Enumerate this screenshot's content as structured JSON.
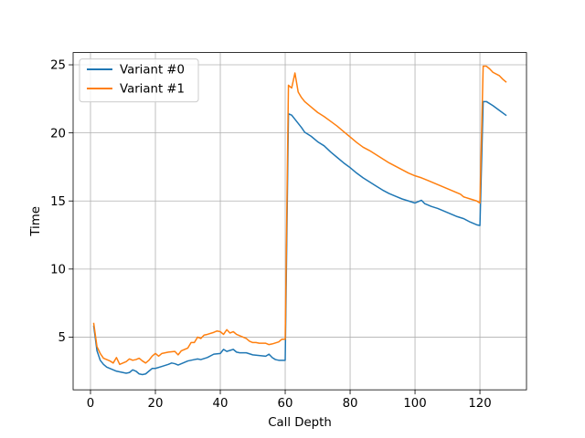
{
  "chart_data": {
    "type": "line",
    "title": "",
    "xlabel": "Call Depth",
    "ylabel": "Time",
    "xlim": [
      -5.35,
      134.35
    ],
    "ylim": [
      1.13,
      25.9
    ],
    "xticks": [
      0,
      20,
      40,
      60,
      80,
      100,
      120
    ],
    "yticks": [
      5,
      10,
      15,
      20,
      25
    ],
    "grid": true,
    "legend_position": "upper-left",
    "series": [
      {
        "name": "Variant #0",
        "color": "#1f77b4",
        "points": [
          [
            1,
            5.8
          ],
          [
            2,
            4.0
          ],
          [
            3,
            3.3
          ],
          [
            4,
            3.0
          ],
          [
            5,
            2.8
          ],
          [
            6,
            2.7
          ],
          [
            7,
            2.6
          ],
          [
            8,
            2.5
          ],
          [
            9,
            2.45
          ],
          [
            10,
            2.4
          ],
          [
            11,
            2.35
          ],
          [
            12,
            2.4
          ],
          [
            13,
            2.6
          ],
          [
            14,
            2.5
          ],
          [
            15,
            2.3
          ],
          [
            16,
            2.25
          ],
          [
            17,
            2.3
          ],
          [
            18,
            2.5
          ],
          [
            19,
            2.7
          ],
          [
            20,
            2.7
          ],
          [
            22,
            2.85
          ],
          [
            24,
            3.0
          ],
          [
            25,
            3.1
          ],
          [
            26,
            3.05
          ],
          [
            27,
            2.95
          ],
          [
            28,
            3.05
          ],
          [
            30,
            3.25
          ],
          [
            32,
            3.35
          ],
          [
            33,
            3.4
          ],
          [
            34,
            3.35
          ],
          [
            36,
            3.5
          ],
          [
            38,
            3.75
          ],
          [
            40,
            3.8
          ],
          [
            41,
            4.1
          ],
          [
            42,
            3.95
          ],
          [
            44,
            4.1
          ],
          [
            45,
            3.9
          ],
          [
            46,
            3.85
          ],
          [
            48,
            3.85
          ],
          [
            50,
            3.7
          ],
          [
            52,
            3.65
          ],
          [
            54,
            3.6
          ],
          [
            55,
            3.75
          ],
          [
            56,
            3.5
          ],
          [
            57,
            3.35
          ],
          [
            58,
            3.3
          ],
          [
            59,
            3.3
          ],
          [
            60,
            3.3
          ],
          [
            61,
            21.4
          ],
          [
            62,
            21.3
          ],
          [
            63,
            21.0
          ],
          [
            64,
            20.7
          ],
          [
            65,
            20.4
          ],
          [
            66,
            20.05
          ],
          [
            68,
            19.75
          ],
          [
            70,
            19.35
          ],
          [
            72,
            19.05
          ],
          [
            74,
            18.6
          ],
          [
            76,
            18.2
          ],
          [
            78,
            17.8
          ],
          [
            80,
            17.45
          ],
          [
            82,
            17.05
          ],
          [
            84,
            16.7
          ],
          [
            86,
            16.4
          ],
          [
            88,
            16.1
          ],
          [
            90,
            15.8
          ],
          [
            92,
            15.55
          ],
          [
            94,
            15.35
          ],
          [
            96,
            15.15
          ],
          [
            98,
            15.0
          ],
          [
            100,
            14.85
          ],
          [
            101,
            14.95
          ],
          [
            102,
            15.05
          ],
          [
            103,
            14.8
          ],
          [
            105,
            14.6
          ],
          [
            107,
            14.45
          ],
          [
            109,
            14.25
          ],
          [
            111,
            14.05
          ],
          [
            113,
            13.85
          ],
          [
            115,
            13.7
          ],
          [
            117,
            13.45
          ],
          [
            119,
            13.25
          ],
          [
            120,
            13.2
          ],
          [
            121,
            22.3
          ],
          [
            122,
            22.3
          ],
          [
            124,
            22.0
          ],
          [
            126,
            21.65
          ],
          [
            128,
            21.3
          ]
        ]
      },
      {
        "name": "Variant #1",
        "color": "#ff7f0e",
        "points": [
          [
            1,
            6.0
          ],
          [
            2,
            4.3
          ],
          [
            3,
            3.8
          ],
          [
            4,
            3.45
          ],
          [
            5,
            3.35
          ],
          [
            6,
            3.25
          ],
          [
            7,
            3.1
          ],
          [
            8,
            3.5
          ],
          [
            9,
            3.0
          ],
          [
            10,
            3.1
          ],
          [
            11,
            3.2
          ],
          [
            12,
            3.4
          ],
          [
            13,
            3.3
          ],
          [
            14,
            3.35
          ],
          [
            15,
            3.45
          ],
          [
            16,
            3.25
          ],
          [
            17,
            3.1
          ],
          [
            18,
            3.3
          ],
          [
            19,
            3.6
          ],
          [
            20,
            3.8
          ],
          [
            21,
            3.6
          ],
          [
            22,
            3.8
          ],
          [
            24,
            3.9
          ],
          [
            26,
            3.95
          ],
          [
            27,
            3.7
          ],
          [
            28,
            4.0
          ],
          [
            30,
            4.2
          ],
          [
            31,
            4.6
          ],
          [
            32,
            4.6
          ],
          [
            33,
            5.0
          ],
          [
            34,
            4.9
          ],
          [
            35,
            5.15
          ],
          [
            36,
            5.2
          ],
          [
            38,
            5.35
          ],
          [
            39,
            5.45
          ],
          [
            40,
            5.4
          ],
          [
            41,
            5.2
          ],
          [
            42,
            5.55
          ],
          [
            43,
            5.3
          ],
          [
            44,
            5.4
          ],
          [
            45,
            5.2
          ],
          [
            46,
            5.1
          ],
          [
            48,
            4.9
          ],
          [
            49,
            4.7
          ],
          [
            50,
            4.6
          ],
          [
            51,
            4.6
          ],
          [
            52,
            4.55
          ],
          [
            54,
            4.55
          ],
          [
            55,
            4.45
          ],
          [
            56,
            4.5
          ],
          [
            58,
            4.65
          ],
          [
            59,
            4.85
          ],
          [
            60,
            4.85
          ],
          [
            61,
            23.5
          ],
          [
            62,
            23.3
          ],
          [
            63,
            24.4
          ],
          [
            64,
            23.0
          ],
          [
            65,
            22.6
          ],
          [
            66,
            22.3
          ],
          [
            68,
            21.9
          ],
          [
            70,
            21.5
          ],
          [
            72,
            21.2
          ],
          [
            74,
            20.85
          ],
          [
            76,
            20.5
          ],
          [
            78,
            20.1
          ],
          [
            80,
            19.7
          ],
          [
            82,
            19.3
          ],
          [
            84,
            18.95
          ],
          [
            86,
            18.7
          ],
          [
            88,
            18.4
          ],
          [
            90,
            18.1
          ],
          [
            92,
            17.8
          ],
          [
            94,
            17.55
          ],
          [
            96,
            17.3
          ],
          [
            98,
            17.05
          ],
          [
            100,
            16.85
          ],
          [
            102,
            16.7
          ],
          [
            104,
            16.5
          ],
          [
            106,
            16.3
          ],
          [
            108,
            16.1
          ],
          [
            110,
            15.9
          ],
          [
            112,
            15.7
          ],
          [
            114,
            15.5
          ],
          [
            115,
            15.3
          ],
          [
            117,
            15.15
          ],
          [
            119,
            15.0
          ],
          [
            120,
            14.85
          ],
          [
            121,
            24.9
          ],
          [
            122,
            24.9
          ],
          [
            123,
            24.7
          ],
          [
            124,
            24.45
          ],
          [
            126,
            24.2
          ],
          [
            127,
            23.95
          ],
          [
            128,
            23.75
          ]
        ]
      }
    ]
  }
}
